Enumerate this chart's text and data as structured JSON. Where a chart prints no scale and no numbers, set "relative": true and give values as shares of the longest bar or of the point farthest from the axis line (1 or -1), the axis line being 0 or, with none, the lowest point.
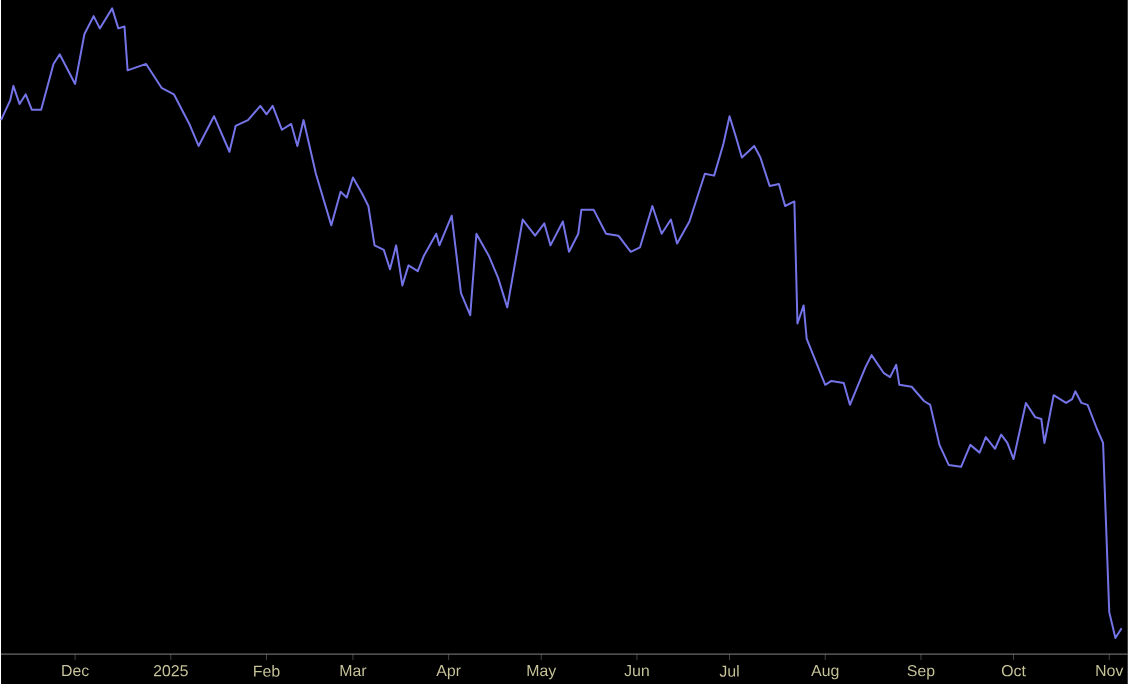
{
  "chart_data": {
    "type": "line",
    "relative": true,
    "xlim": [
      "2024-11-07",
      "2025-11-07"
    ],
    "xticks": [
      {
        "value": "2024-12-01",
        "label": "Dec"
      },
      {
        "value": "2025-01-01",
        "label": "2025"
      },
      {
        "value": "2025-02-01",
        "label": "Feb"
      },
      {
        "value": "2025-03-01",
        "label": "Mar"
      },
      {
        "value": "2025-04-01",
        "label": "Apr"
      },
      {
        "value": "2025-05-01",
        "label": "May"
      },
      {
        "value": "2025-06-01",
        "label": "Jun"
      },
      {
        "value": "2025-07-01",
        "label": "Jul"
      },
      {
        "value": "2025-08-01",
        "label": "Aug"
      },
      {
        "value": "2025-09-01",
        "label": "Sep"
      },
      {
        "value": "2025-10-01",
        "label": "Oct"
      },
      {
        "value": "2025-11-01",
        "label": "Nov"
      }
    ],
    "x": [
      "2024-11-07",
      "2024-11-10",
      "2024-11-11",
      "2024-11-13",
      "2024-11-15",
      "2024-11-17",
      "2024-11-20",
      "2024-11-24",
      "2024-11-26",
      "2024-12-01",
      "2024-12-04",
      "2024-12-07",
      "2024-12-09",
      "2024-12-13",
      "2024-12-15",
      "2024-12-17",
      "2024-12-18",
      "2024-12-24",
      "2024-12-29",
      "2025-01-02",
      "2025-01-07",
      "2025-01-10",
      "2025-01-15",
      "2025-01-20",
      "2025-01-22",
      "2025-01-26",
      "2025-01-30",
      "2025-02-01",
      "2025-02-03",
      "2025-02-06",
      "2025-02-09",
      "2025-02-11",
      "2025-02-13",
      "2025-02-17",
      "2025-02-22",
      "2025-02-25",
      "2025-02-27",
      "2025-03-01",
      "2025-03-04",
      "2025-03-06",
      "2025-03-08",
      "2025-03-11",
      "2025-03-13",
      "2025-03-15",
      "2025-03-17",
      "2025-03-19",
      "2025-03-22",
      "2025-03-24",
      "2025-03-28",
      "2025-03-29",
      "2025-04-02",
      "2025-04-05",
      "2025-04-08",
      "2025-04-10",
      "2025-04-14",
      "2025-04-17",
      "2025-04-20",
      "2025-04-25",
      "2025-04-29",
      "2025-05-02",
      "2025-05-04",
      "2025-05-08",
      "2025-05-10",
      "2025-05-13",
      "2025-05-14",
      "2025-05-18",
      "2025-05-22",
      "2025-05-26",
      "2025-05-30",
      "2025-06-02",
      "2025-06-06",
      "2025-06-09",
      "2025-06-12",
      "2025-06-14",
      "2025-06-18",
      "2025-06-23",
      "2025-06-26",
      "2025-06-29",
      "2025-07-01",
      "2025-07-03",
      "2025-07-05",
      "2025-07-09",
      "2025-07-11",
      "2025-07-14",
      "2025-07-17",
      "2025-07-19",
      "2025-07-22",
      "2025-07-23",
      "2025-07-25",
      "2025-07-26",
      "2025-08-01",
      "2025-08-03",
      "2025-08-07",
      "2025-08-09",
      "2025-08-14",
      "2025-08-16",
      "2025-08-20",
      "2025-08-22",
      "2025-08-24",
      "2025-08-25",
      "2025-08-29",
      "2025-09-02",
      "2025-09-04",
      "2025-09-07",
      "2025-09-10",
      "2025-09-14",
      "2025-09-17",
      "2025-09-20",
      "2025-09-22",
      "2025-09-25",
      "2025-09-27",
      "2025-09-29",
      "2025-10-01",
      "2025-10-05",
      "2025-10-08",
      "2025-10-10",
      "2025-10-11",
      "2025-10-14",
      "2025-10-18",
      "2025-10-20",
      "2025-10-21",
      "2025-10-23",
      "2025-10-25",
      "2025-10-28",
      "2025-10-30",
      "2025-11-01",
      "2025-11-03",
      "2025-11-05"
    ],
    "series": [
      {
        "color": "#7474e8",
        "values": [
          0.827,
          0.858,
          0.88,
          0.852,
          0.867,
          0.843,
          0.843,
          0.914,
          0.929,
          0.883,
          0.96,
          0.988,
          0.969,
          1,
          0.969,
          0.972,
          0.904,
          0.914,
          0.877,
          0.867,
          0.821,
          0.787,
          0.833,
          0.778,
          0.818,
          0.827,
          0.849,
          0.836,
          0.849,
          0.812,
          0.821,
          0.787,
          0.827,
          0.744,
          0.664,
          0.716,
          0.707,
          0.738,
          0.713,
          0.694,
          0.633,
          0.626,
          0.596,
          0.633,
          0.571,
          0.602,
          0.593,
          0.617,
          0.651,
          0.633,
          0.679,
          0.559,
          0.525,
          0.651,
          0.617,
          0.583,
          0.537,
          0.673,
          0.648,
          0.667,
          0.633,
          0.67,
          0.623,
          0.651,
          0.688,
          0.688,
          0.651,
          0.648,
          0.623,
          0.63,
          0.694,
          0.651,
          0.673,
          0.636,
          0.67,
          0.744,
          0.741,
          0.79,
          0.833,
          0.802,
          0.769,
          0.787,
          0.769,
          0.725,
          0.728,
          0.694,
          0.701,
          0.512,
          0.54,
          0.488,
          0.417,
          0.423,
          0.42,
          0.386,
          0.444,
          0.463,
          0.435,
          0.429,
          0.448,
          0.417,
          0.414,
          0.392,
          0.386,
          0.324,
          0.293,
          0.29,
          0.324,
          0.312,
          0.336,
          0.318,
          0.34,
          0.327,
          0.302,
          0.389,
          0.367,
          0.364,
          0.327,
          0.401,
          0.389,
          0.395,
          0.407,
          0.389,
          0.386,
          0.349,
          0.327,
          0.065,
          0.025,
          0.04
        ]
      }
    ]
  }
}
